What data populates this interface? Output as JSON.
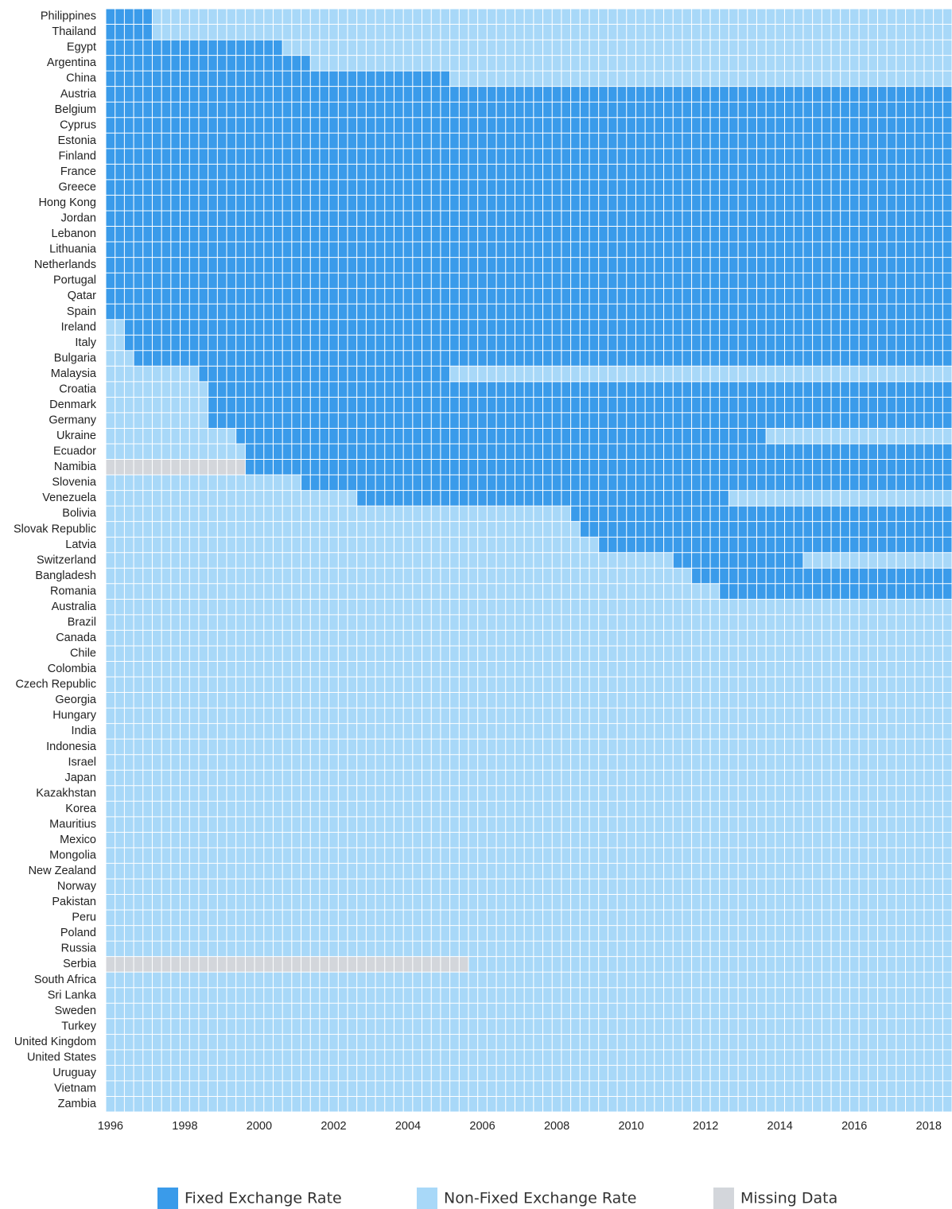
{
  "chart_data": {
    "type": "heatmap",
    "categories": [
      "Philippines",
      "Thailand",
      "Egypt",
      "Argentina",
      "China",
      "Austria",
      "Belgium",
      "Cyprus",
      "Estonia",
      "Finland",
      "France",
      "Greece",
      "Hong Kong",
      "Jordan",
      "Lebanon",
      "Lithuania",
      "Netherlands",
      "Portugal",
      "Qatar",
      "Spain",
      "Ireland",
      "Italy",
      "Bulgaria",
      "Malaysia",
      "Croatia",
      "Denmark",
      "Germany",
      "Ukraine",
      "Ecuador",
      "Namibia",
      "Slovenia",
      "Venezuela",
      "Bolivia",
      "Slovak Republic",
      "Latvia",
      "Switzerland",
      "Bangladesh",
      "Romania",
      "Australia",
      "Brazil",
      "Canada",
      "Chile",
      "Colombia",
      "Czech Republic",
      "Georgia",
      "Hungary",
      "India",
      "Indonesia",
      "Israel",
      "Japan",
      "Kazakhstan",
      "Korea",
      "Mauritius",
      "Mexico",
      "Mongolia",
      "New Zealand",
      "Norway",
      "Pakistan",
      "Peru",
      "Poland",
      "Russia",
      "Serbia",
      "South Africa",
      "Sri Lanka",
      "Sweden",
      "Turkey",
      "United Kingdom",
      "United States",
      "Uruguay",
      "Vietnam",
      "Zambia"
    ],
    "xlim": [
      1995.875,
      2018.625
    ],
    "xticks": [
      1996,
      1998,
      2000,
      2002,
      2004,
      2006,
      2008,
      2010,
      2012,
      2014,
      2016,
      2018
    ],
    "series": [
      {
        "name": "Fixed Exchange Rate",
        "color": "#3a9bea",
        "periods": [
          {
            "category": "Philippines",
            "from": 1996,
            "to": 1997
          },
          {
            "category": "Thailand",
            "from": 1996,
            "to": 1997
          },
          {
            "category": "Egypt",
            "from": 1996,
            "to": 2000.5
          },
          {
            "category": "Argentina",
            "from": 1996,
            "to": 2001.25
          },
          {
            "category": "China",
            "from": 1996,
            "to": 2005
          },
          {
            "category": "Austria",
            "from": 1996,
            "to": 2018.5
          },
          {
            "category": "Belgium",
            "from": 1996,
            "to": 2018.5
          },
          {
            "category": "Cyprus",
            "from": 1996,
            "to": 2018.5
          },
          {
            "category": "Estonia",
            "from": 1996,
            "to": 2018.5
          },
          {
            "category": "Finland",
            "from": 1996,
            "to": 2018.5
          },
          {
            "category": "France",
            "from": 1996,
            "to": 2018.5
          },
          {
            "category": "Greece",
            "from": 1996,
            "to": 2018.5
          },
          {
            "category": "Hong Kong",
            "from": 1996,
            "to": 2018.5
          },
          {
            "category": "Jordan",
            "from": 1996,
            "to": 2018.5
          },
          {
            "category": "Lebanon",
            "from": 1996,
            "to": 2018.5
          },
          {
            "category": "Lithuania",
            "from": 1996,
            "to": 2018.5
          },
          {
            "category": "Netherlands",
            "from": 1996,
            "to": 2018.5
          },
          {
            "category": "Portugal",
            "from": 1996,
            "to": 2018.5
          },
          {
            "category": "Qatar",
            "from": 1996,
            "to": 2018.5
          },
          {
            "category": "Spain",
            "from": 1996,
            "to": 2018.5
          },
          {
            "category": "Ireland",
            "from": 1996.5,
            "to": 2018.5
          },
          {
            "category": "Italy",
            "from": 1996.5,
            "to": 2018.5
          },
          {
            "category": "Bulgaria",
            "from": 1996.75,
            "to": 2018.5
          },
          {
            "category": "Malaysia",
            "from": 1998.5,
            "to": 2005
          },
          {
            "category": "Croatia",
            "from": 1998.75,
            "to": 2018.5
          },
          {
            "category": "Denmark",
            "from": 1998.75,
            "to": 2018.5
          },
          {
            "category": "Germany",
            "from": 1998.75,
            "to": 2018.5
          },
          {
            "category": "Ukraine",
            "from": 1999.5,
            "to": 2013.5
          },
          {
            "category": "Ecuador",
            "from": 1999.75,
            "to": 2018.5
          },
          {
            "category": "Namibia",
            "from": 1999.75,
            "to": 2018.5
          },
          {
            "category": "Slovenia",
            "from": 2001.25,
            "to": 2018.5
          },
          {
            "category": "Venezuela",
            "from": 2002.75,
            "to": 2012.5
          },
          {
            "category": "Bolivia",
            "from": 2008.5,
            "to": 2018.5
          },
          {
            "category": "Slovak Republic",
            "from": 2008.75,
            "to": 2018.5
          },
          {
            "category": "Latvia",
            "from": 2009.25,
            "to": 2018.5
          },
          {
            "category": "Switzerland",
            "from": 2011.25,
            "to": 2014.5
          },
          {
            "category": "Bangladesh",
            "from": 2011.75,
            "to": 2018.5
          },
          {
            "category": "Romania",
            "from": 2012.5,
            "to": 2018.5
          }
        ]
      },
      {
        "name": "Non-Fixed Exchange Rate",
        "color": "#a8d8f8"
      },
      {
        "name": "Missing Data",
        "color": "#d3d6db",
        "periods": [
          {
            "category": "Namibia",
            "from": 1996,
            "to": 1999.5
          },
          {
            "category": "Serbia",
            "from": 1996,
            "to": 2005.5
          }
        ]
      }
    ]
  }
}
